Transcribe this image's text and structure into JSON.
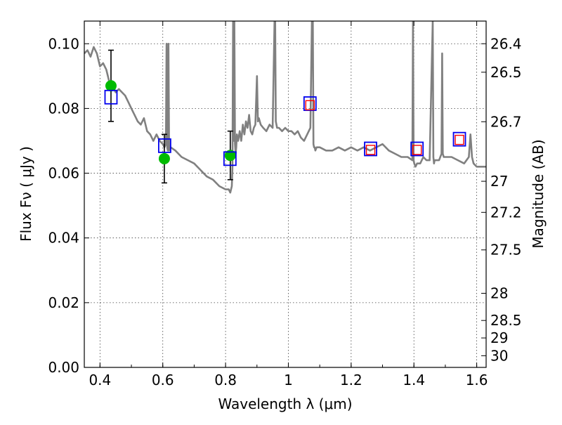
{
  "chart_data": {
    "type": "scatter",
    "title": "",
    "xlabel": "Wavelength  λ (μm)",
    "ylabel": "Flux  Fν  ( μJy )",
    "ylabel2": "Magnitude (AB)",
    "xlim": [
      0.35,
      1.63
    ],
    "ylim": [
      0.0,
      0.107
    ],
    "grid": true,
    "xticks": [
      0.4,
      0.6,
      0.8,
      1.0,
      1.2,
      1.4,
      1.6
    ],
    "xtick_labels": [
      "0.4",
      "0.6",
      "0.8",
      "1",
      "1.2",
      "1.4",
      "1.6"
    ],
    "yticks": [
      0.0,
      0.02,
      0.04,
      0.06,
      0.08,
      0.1
    ],
    "ytick_labels": [
      "0.00",
      "0.02",
      "0.04",
      "0.06",
      "0.08",
      "0.10"
    ],
    "mag_ticks": [
      {
        "label": "26.4",
        "flux": 0.1
      },
      {
        "label": "26.5",
        "flux": 0.0912
      },
      {
        "label": "26.7",
        "flux": 0.0759
      },
      {
        "label": "27",
        "flux": 0.0575
      },
      {
        "label": "27.2",
        "flux": 0.0479
      },
      {
        "label": "27.5",
        "flux": 0.0363
      },
      {
        "label": "28",
        "flux": 0.0229
      },
      {
        "label": "28.5",
        "flux": 0.0145
      },
      {
        "label": "29",
        "flux": 0.0091
      },
      {
        "label": "30",
        "flux": 0.0036
      }
    ],
    "series": [
      {
        "type": "line",
        "color": "#808080",
        "x": [
          0.35,
          0.36,
          0.37,
          0.38,
          0.39,
          0.4,
          0.41,
          0.42,
          0.43,
          0.44,
          0.45,
          0.46,
          0.47,
          0.48,
          0.49,
          0.5,
          0.51,
          0.52,
          0.53,
          0.54,
          0.55,
          0.56,
          0.57,
          0.58,
          0.59,
          0.6,
          0.605,
          0.61,
          0.612,
          0.614,
          0.616,
          0.618,
          0.62,
          0.625,
          0.64,
          0.66,
          0.68,
          0.7,
          0.72,
          0.74,
          0.76,
          0.78,
          0.8,
          0.81,
          0.815,
          0.82,
          0.822,
          0.824,
          0.826,
          0.828,
          0.83,
          0.832,
          0.834,
          0.836,
          0.84,
          0.845,
          0.85,
          0.855,
          0.86,
          0.865,
          0.87,
          0.875,
          0.88,
          0.885,
          0.89,
          0.895,
          0.9,
          0.903,
          0.906,
          0.909,
          0.912,
          0.92,
          0.93,
          0.94,
          0.95,
          0.956,
          0.958,
          0.96,
          0.962,
          0.964,
          0.97,
          0.98,
          0.99,
          1.0,
          1.01,
          1.02,
          1.03,
          1.04,
          1.05,
          1.06,
          1.07,
          1.075,
          1.078,
          1.08,
          1.082,
          1.084,
          1.086,
          1.09,
          1.1,
          1.12,
          1.14,
          1.16,
          1.18,
          1.2,
          1.22,
          1.24,
          1.26,
          1.28,
          1.3,
          1.32,
          1.34,
          1.36,
          1.38,
          1.395,
          1.397,
          1.399,
          1.401,
          1.405,
          1.41,
          1.42,
          1.43,
          1.44,
          1.45,
          1.46,
          1.462,
          1.464,
          1.466,
          1.47,
          1.48,
          1.488,
          1.49,
          1.492,
          1.495,
          1.5,
          1.52,
          1.54,
          1.56,
          1.575,
          1.58,
          1.585,
          1.59,
          1.6,
          1.62,
          1.63
        ],
        "y": [
          0.097,
          0.098,
          0.096,
          0.099,
          0.097,
          0.093,
          0.094,
          0.092,
          0.088,
          0.087,
          0.085,
          0.086,
          0.085,
          0.084,
          0.082,
          0.08,
          0.078,
          0.076,
          0.075,
          0.077,
          0.073,
          0.072,
          0.07,
          0.072,
          0.07,
          0.069,
          0.068,
          0.069,
          0.1,
          0.068,
          0.067,
          0.1,
          0.067,
          0.068,
          0.067,
          0.065,
          0.064,
          0.063,
          0.061,
          0.059,
          0.058,
          0.056,
          0.055,
          0.055,
          0.054,
          0.056,
          0.062,
          0.107,
          0.07,
          0.107,
          0.069,
          0.066,
          0.068,
          0.072,
          0.07,
          0.073,
          0.07,
          0.075,
          0.072,
          0.076,
          0.074,
          0.078,
          0.073,
          0.072,
          0.074,
          0.075,
          0.09,
          0.076,
          0.077,
          0.076,
          0.075,
          0.074,
          0.073,
          0.075,
          0.074,
          0.107,
          0.107,
          0.076,
          0.075,
          0.074,
          0.074,
          0.073,
          0.074,
          0.073,
          0.073,
          0.072,
          0.073,
          0.071,
          0.07,
          0.072,
          0.074,
          0.107,
          0.107,
          0.069,
          0.068,
          0.068,
          0.067,
          0.068,
          0.068,
          0.067,
          0.067,
          0.068,
          0.067,
          0.068,
          0.067,
          0.068,
          0.067,
          0.068,
          0.069,
          0.067,
          0.066,
          0.065,
          0.065,
          0.064,
          0.107,
          0.064,
          0.063,
          0.062,
          0.063,
          0.063,
          0.065,
          0.064,
          0.064,
          0.107,
          0.065,
          0.063,
          0.064,
          0.064,
          0.064,
          0.066,
          0.097,
          0.066,
          0.065,
          0.065,
          0.065,
          0.064,
          0.063,
          0.065,
          0.072,
          0.065,
          0.063,
          0.062,
          0.062,
          0.062
        ]
      },
      {
        "type": "errorbar",
        "color": "#000000",
        "x": [
          0.435,
          0.605,
          0.815
        ],
        "y": [
          0.087,
          0.0645,
          0.0655
        ],
        "yerr": [
          0.011,
          0.0075,
          0.0075
        ]
      },
      {
        "type": "scatter",
        "marker": "circle",
        "color": "#00bb00",
        "x": [
          0.435,
          0.605,
          0.815
        ],
        "y": [
          0.087,
          0.0645,
          0.0655
        ]
      },
      {
        "type": "scatter",
        "marker": "open-square",
        "color": "#0000ee",
        "x": [
          0.435,
          0.606,
          0.814,
          1.069,
          1.262,
          1.41,
          1.545
        ],
        "y": [
          0.0835,
          0.0685,
          0.0645,
          0.0815,
          0.0675,
          0.0675,
          0.0705
        ]
      },
      {
        "type": "scatter",
        "marker": "open-square-small",
        "color": "#ff0000",
        "x": [
          1.069,
          1.262,
          1.41,
          1.545
        ],
        "y": [
          0.081,
          0.0672,
          0.0672,
          0.0703
        ]
      }
    ]
  }
}
